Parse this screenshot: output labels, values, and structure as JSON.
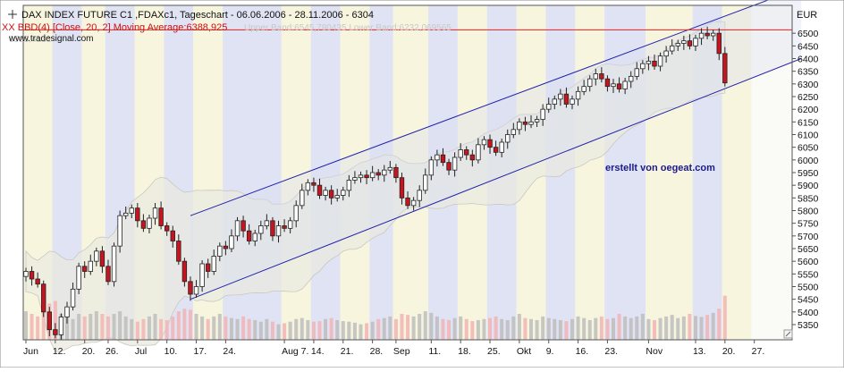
{
  "header": {
    "title": "DAX INDEX FUTURE C1 ,FDAXc1, Tageschart - 06.06.2006 - 28.11.2006 - 6304",
    "indicator_label": "XX BBD(4) [Close, 20, 2] Moving Average:6388,925",
    "indicator_bands": "Upper Band:6545,780435 Lower Band:6232,069565",
    "indicator_extra": "6513,4131",
    "website": "www.tradesignal.com"
  },
  "annotation": "erstellt von oegeat.com",
  "currency": "EUR",
  "colors": {
    "up_candle": "#ffffff",
    "down_candle": "#c8141e",
    "channel_line": "#2222aa",
    "channel_fill": "#d8dcf0",
    "bollinger_fill": "#e9e9e0",
    "reference_line": "#dd2222",
    "annotation": "#1a1a8c",
    "volume_up": "#bdbdbd",
    "volume_down": "#f2b4b4",
    "stripe_blue": "#dde0f3",
    "stripe_yellow": "#f6f4dc"
  },
  "chart_data": {
    "type": "candlestick",
    "title": "DAX INDEX FUTURE C1 ,FDAXc1, Tageschart - 06.06.2006 - 28.11.2006 - 6304",
    "y_axis": {
      "label": "EUR",
      "ylim": [
        5290,
        6610
      ],
      "ticks": [
        5350,
        5400,
        5450,
        5500,
        5550,
        5600,
        5650,
        5700,
        5750,
        5800,
        5850,
        5900,
        5950,
        6000,
        6050,
        6100,
        6150,
        6200,
        6250,
        6300,
        6350,
        6400,
        6450,
        6500
      ]
    },
    "x_axis": {
      "tick_labels": [
        {
          "label": "Jun",
          "index": 0
        },
        {
          "label": "12.",
          "index": 5
        },
        {
          "label": "20.",
          "index": 10
        },
        {
          "label": "26.",
          "index": 14
        },
        {
          "label": "Jul",
          "index": 19
        },
        {
          "label": "10.",
          "index": 24
        },
        {
          "label": "17.",
          "index": 29
        },
        {
          "label": "24.",
          "index": 34
        },
        {
          "label": "Aug 7.",
          "index": 44
        },
        {
          "label": "14.",
          "index": 49
        },
        {
          "label": "21.",
          "index": 54
        },
        {
          "label": "28.",
          "index": 59
        },
        {
          "label": "Sep",
          "index": 63
        },
        {
          "label": "11.",
          "index": 69
        },
        {
          "label": "18.",
          "index": 74
        },
        {
          "label": "25.",
          "index": 79
        },
        {
          "label": "Okt",
          "index": 84
        },
        {
          "label": "9.",
          "index": 89
        },
        {
          "label": "16.",
          "index": 94
        },
        {
          "label": "23.",
          "index": 99
        },
        {
          "label": "Nov",
          "index": 106
        },
        {
          "label": "13.",
          "index": 114
        },
        {
          "label": "20.",
          "index": 119
        },
        {
          "label": "27.",
          "index": 124
        }
      ]
    },
    "close": [
      5560,
      5530,
      5510,
      5400,
      5330,
      5310,
      5380,
      5420,
      5490,
      5580,
      5560,
      5600,
      5640,
      5580,
      5520,
      5660,
      5780,
      5790,
      5810,
      5760,
      5730,
      5770,
      5810,
      5740,
      5720,
      5680,
      5600,
      5520,
      5470,
      5500,
      5590,
      5560,
      5620,
      5660,
      5650,
      5700,
      5760,
      5720,
      5680,
      5710,
      5740,
      5760,
      5700,
      5740,
      5730,
      5760,
      5820,
      5880,
      5910,
      5900,
      5860,
      5880,
      5850,
      5860,
      5880,
      5920,
      5930,
      5940,
      5930,
      5950,
      5940,
      5960,
      5970,
      5930,
      5850,
      5820,
      5840,
      5880,
      5940,
      6000,
      6020,
      5990,
      5960,
      6010,
      6040,
      6020,
      6000,
      6060,
      6080,
      6050,
      6030,
      6070,
      6100,
      6120,
      6150,
      6140,
      6150,
      6160,
      6200,
      6220,
      6240,
      6260,
      6220,
      6240,
      6270,
      6290,
      6320,
      6340,
      6320,
      6290,
      6300,
      6280,
      6310,
      6330,
      6360,
      6380,
      6390,
      6370,
      6410,
      6430,
      6450,
      6460,
      6470,
      6450,
      6480,
      6500,
      6490,
      6500,
      6420,
      6304
    ],
    "high": 6512,
    "low": 5290,
    "reference_line": 6513.4131,
    "bollinger": {
      "period": 20,
      "std_dev": 2,
      "moving_average": 6388.925,
      "upper_band": 6545.780435,
      "lower_band": 6232.069565
    },
    "trend_channel": {
      "upper": [
        {
          "index": 28,
          "value": 5780
        },
        {
          "index": 132,
          "value": 6680
        }
      ],
      "lower": [
        {
          "index": 28,
          "value": 5450
        },
        {
          "index": 132,
          "value": 6400
        }
      ]
    },
    "volume_relative": [
      0.55,
      0.5,
      0.45,
      0.62,
      0.7,
      0.75,
      0.5,
      0.45,
      0.4,
      0.5,
      0.45,
      0.5,
      0.55,
      0.5,
      0.45,
      0.5,
      0.55,
      0.45,
      0.4,
      0.35,
      0.4,
      0.45,
      0.5,
      0.4,
      0.38,
      0.45,
      0.55,
      0.6,
      0.58,
      0.5,
      0.45,
      0.4,
      0.45,
      0.5,
      0.45,
      0.42,
      0.4,
      0.45,
      0.4,
      0.38,
      0.35,
      0.4,
      0.35,
      0.3,
      0.32,
      0.35,
      0.4,
      0.42,
      0.38,
      0.35,
      0.36,
      0.4,
      0.42,
      0.38,
      0.36,
      0.35,
      0.33,
      0.3,
      0.32,
      0.35,
      0.4,
      0.42,
      0.45,
      0.4,
      0.5,
      0.48,
      0.45,
      0.5,
      0.55,
      0.52,
      0.45,
      0.4,
      0.38,
      0.42,
      0.45,
      0.4,
      0.36,
      0.38,
      0.4,
      0.42,
      0.45,
      0.4,
      0.38,
      0.45,
      0.5,
      0.42,
      0.4,
      0.38,
      0.45,
      0.42,
      0.4,
      0.38,
      0.36,
      0.4,
      0.45,
      0.42,
      0.38,
      0.42,
      0.45,
      0.4,
      0.42,
      0.5,
      0.45,
      0.42,
      0.45,
      0.5,
      0.4,
      0.38,
      0.42,
      0.45,
      0.48,
      0.42,
      0.45,
      0.5,
      0.46,
      0.44,
      0.48,
      0.52,
      0.6,
      0.85
    ]
  }
}
